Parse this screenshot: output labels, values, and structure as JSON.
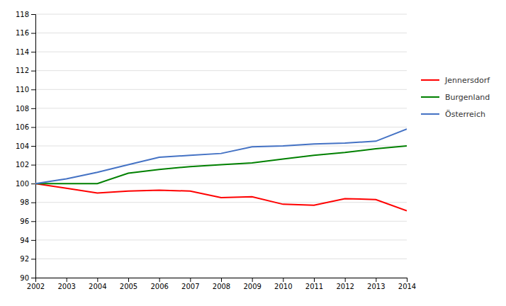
{
  "chart_data": {
    "type": "line",
    "x": [
      2002,
      2003,
      2004,
      2005,
      2006,
      2007,
      2008,
      2009,
      2010,
      2011,
      2012,
      2013,
      2014
    ],
    "series": [
      {
        "name": "Jennersdorf",
        "color": "#FF0000",
        "values": [
          100.0,
          99.5,
          99.0,
          99.2,
          99.3,
          99.2,
          98.5,
          98.6,
          97.8,
          97.7,
          98.4,
          98.3,
          97.1
        ]
      },
      {
        "name": "Burgenland",
        "color": "#008000",
        "values": [
          100.0,
          100.0,
          100.0,
          101.1,
          101.5,
          101.8,
          102.0,
          102.2,
          102.6,
          103.0,
          103.3,
          103.7,
          104.0
        ]
      },
      {
        "name": "Österreich",
        "color": "#4472C4",
        "values": [
          100.0,
          100.5,
          101.2,
          102.0,
          102.8,
          103.0,
          103.2,
          103.9,
          104.0,
          104.2,
          104.3,
          104.5,
          105.8
        ]
      }
    ],
    "xlim": [
      2002,
      2014
    ],
    "xticks": [
      2002,
      2003,
      2004,
      2005,
      2006,
      2007,
      2008,
      2009,
      2010,
      2011,
      2012,
      2013,
      2014
    ],
    "ylim": [
      90,
      118
    ],
    "yticks": [
      90,
      92,
      94,
      96,
      98,
      100,
      102,
      104,
      106,
      108,
      110,
      112,
      114,
      116,
      118
    ],
    "grid": true,
    "legend": "right"
  }
}
